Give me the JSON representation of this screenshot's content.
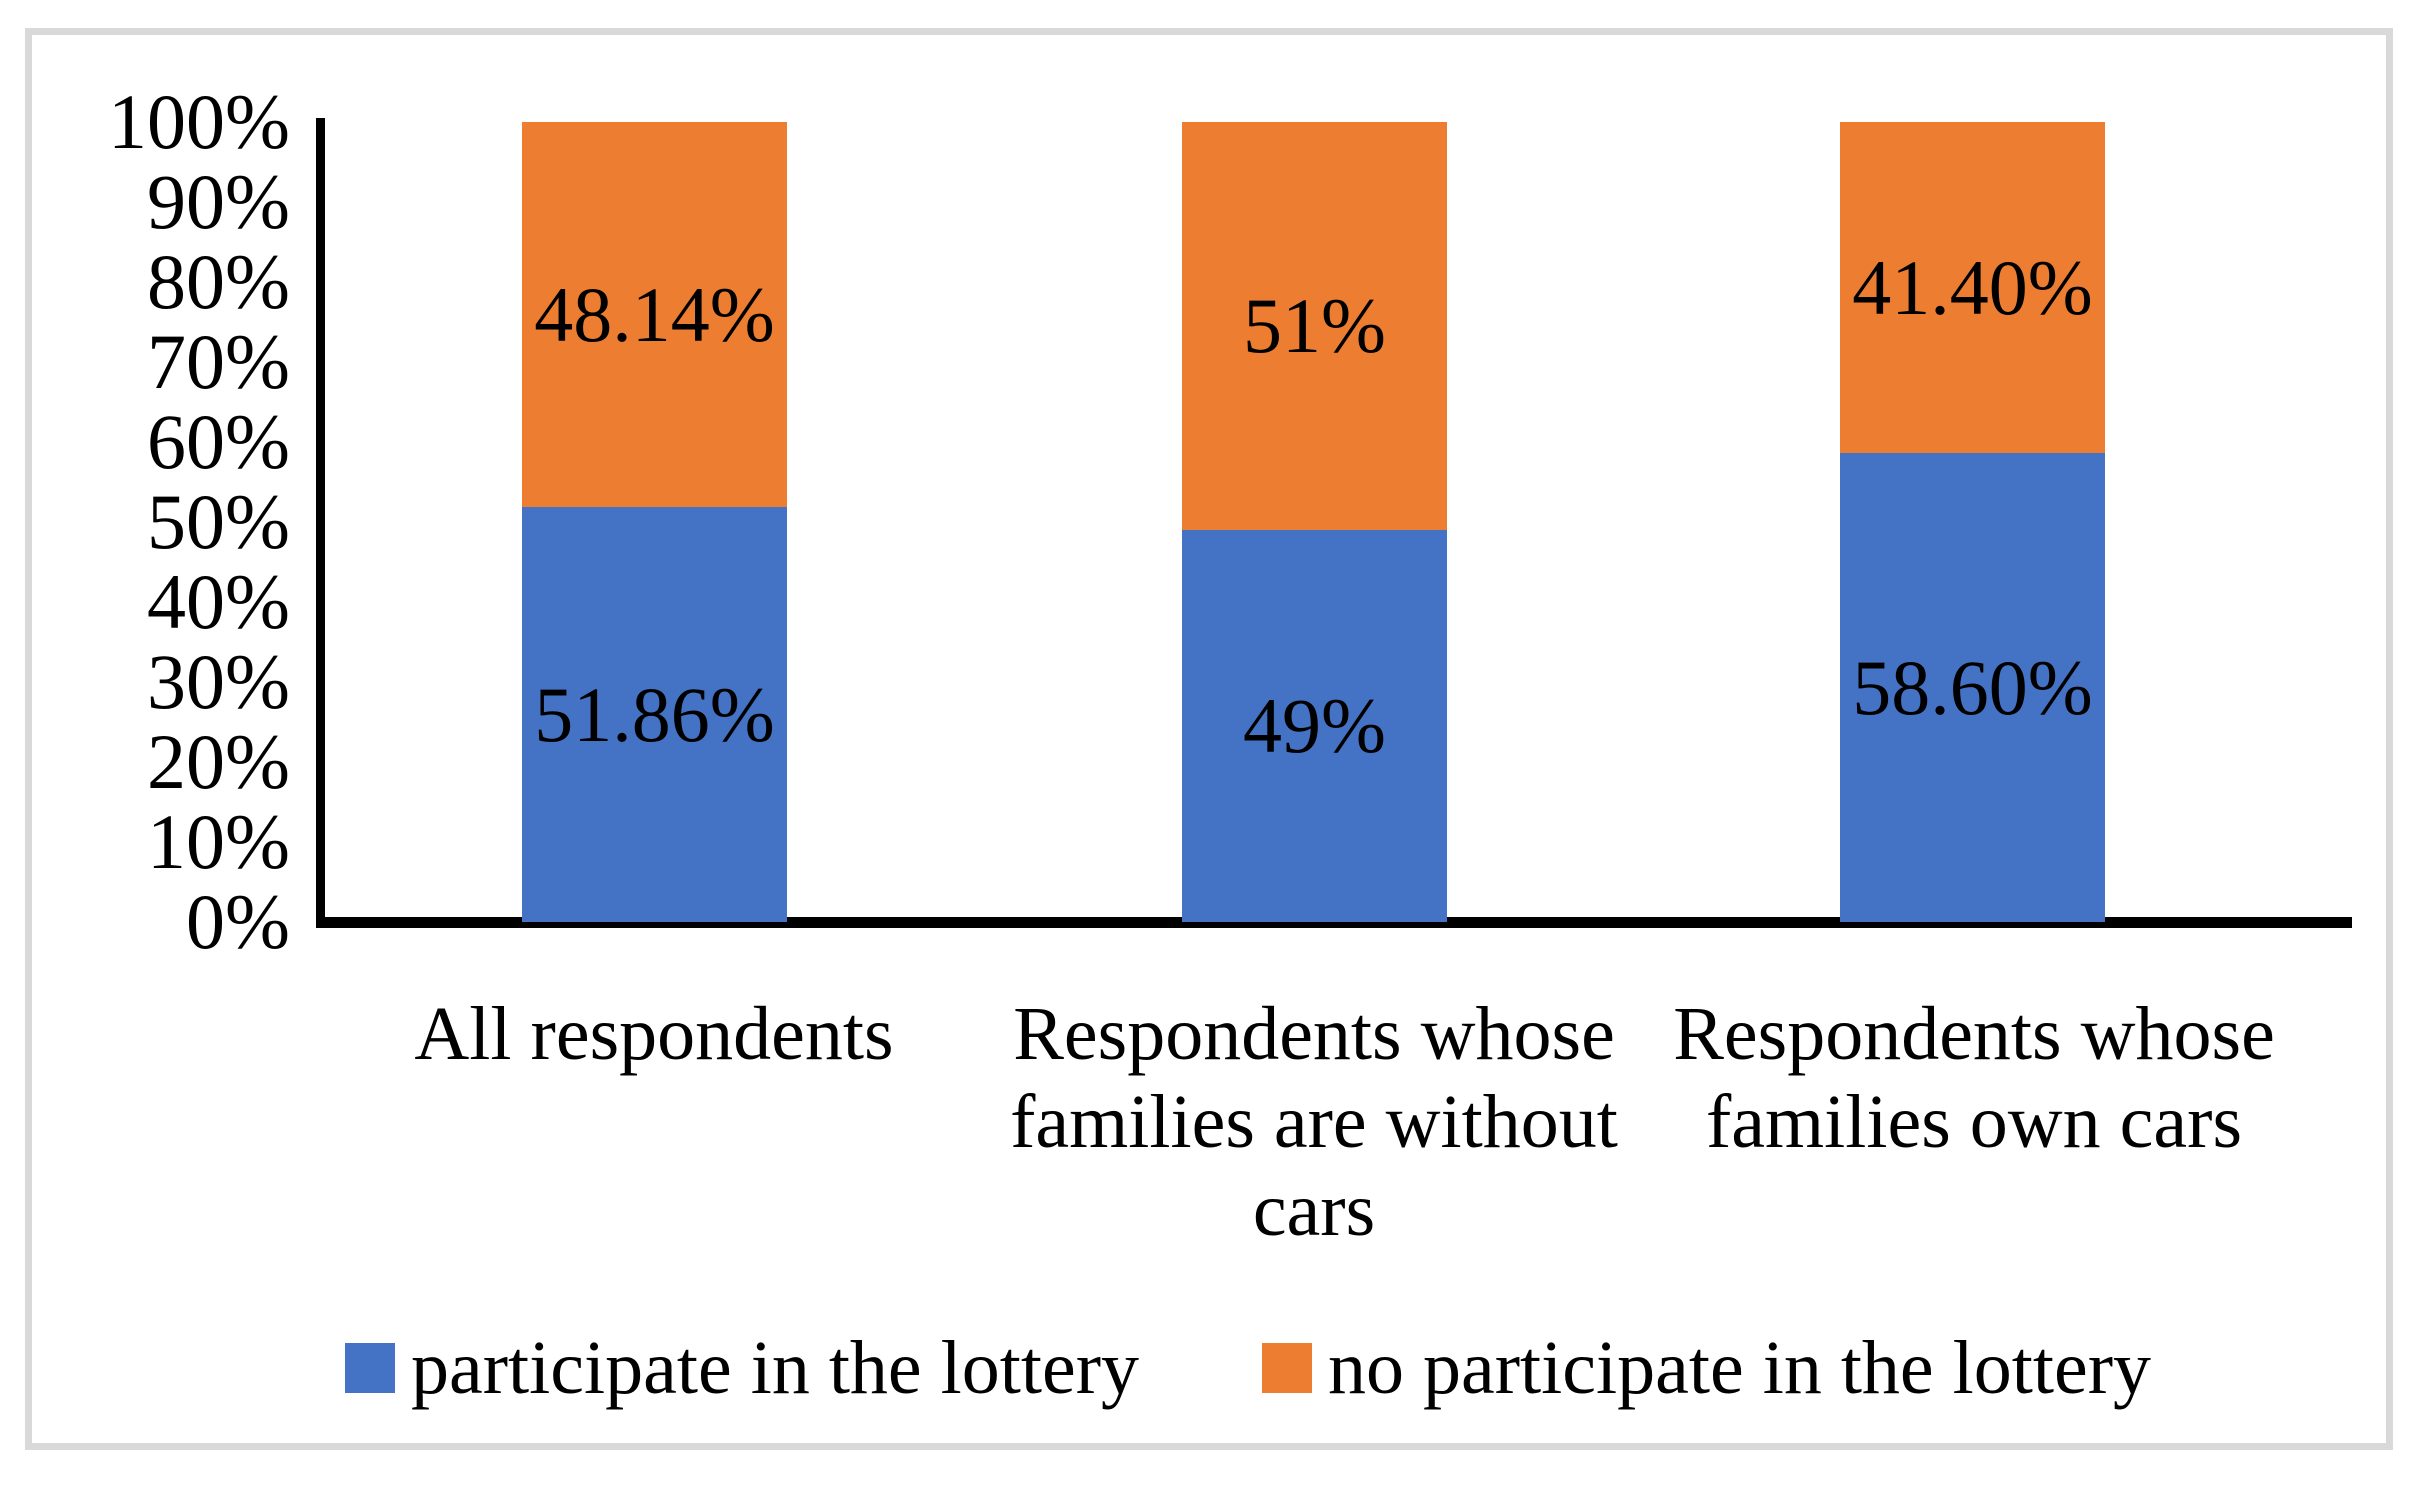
{
  "chart_data": {
    "type": "bar",
    "subtype": "stacked-100",
    "title": "",
    "xlabel": "",
    "ylabel": "",
    "categories": [
      "All respondents",
      "Respondents whose families are without cars",
      "Respondents whose families own cars"
    ],
    "series": [
      {
        "name": "participate in the lottery",
        "color": "#4472C4",
        "values": [
          51.86,
          49,
          58.6
        ],
        "data_labels": [
          "51.86%",
          "49%",
          "58.60%"
        ]
      },
      {
        "name": "no participate in the lottery",
        "color": "#ED7D31",
        "values": [
          48.14,
          51,
          41.4
        ],
        "data_labels": [
          "48.14%",
          "51%",
          "41.40%"
        ]
      }
    ],
    "yticks": [
      "100%",
      "90%",
      "80%",
      "70%",
      "60%",
      "50%",
      "40%",
      "30%",
      "20%",
      "10%",
      "0%"
    ],
    "ylim": [
      0,
      100
    ],
    "grid": false,
    "legend_position": "bottom"
  },
  "frame": {
    "border_color": "#D9D9D9"
  },
  "axis_color": "#000000",
  "text_color": "#000000"
}
